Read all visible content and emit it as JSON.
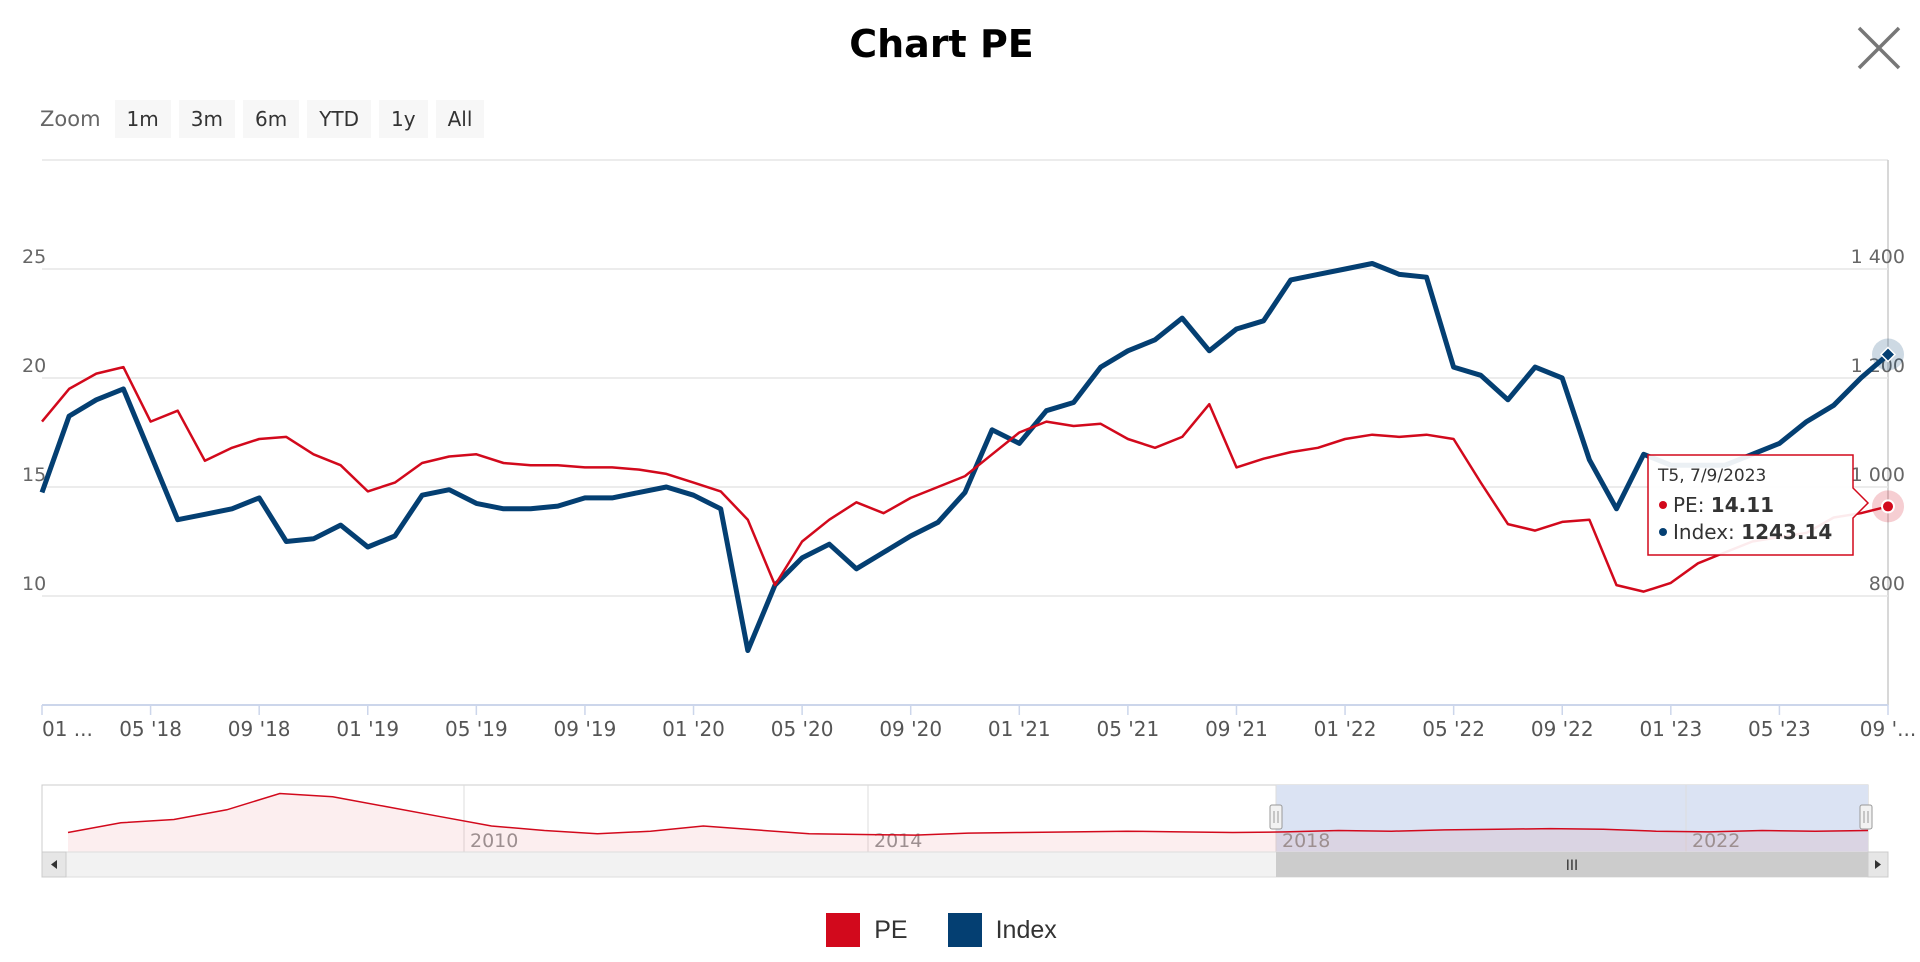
{
  "title": "Chart PE",
  "zoom": {
    "label": "Zoom",
    "buttons": [
      "1m",
      "3m",
      "6m",
      "YTD",
      "1y",
      "All"
    ]
  },
  "colors": {
    "pe": "#d2091c",
    "index": "#043f72",
    "navigator_fill": "#dbe3f3",
    "grid": "#e6e6e6"
  },
  "chart_data": {
    "type": "line",
    "title": "Chart PE",
    "x_range": [
      "2018-01",
      "2023-09"
    ],
    "x_tick_labels": [
      "01 ...",
      "05 '18",
      "09 '18",
      "01 '19",
      "05 '19",
      "09 '19",
      "01 '20",
      "05 '20",
      "09 '20",
      "01 '21",
      "05 '21",
      "09 '21",
      "01 '22",
      "05 '22",
      "09 '22",
      "01 '23",
      "05 '23",
      "09 '..."
    ],
    "y_left": {
      "label": "",
      "ticks": [
        "10",
        "15",
        "20",
        "25"
      ],
      "range": [
        5,
        30
      ]
    },
    "y_right": {
      "label": "",
      "ticks": [
        "800",
        "1 000",
        "1 200",
        "1 400"
      ],
      "range": [
        600,
        1600
      ]
    },
    "grid": true,
    "legend_position": "bottom-center",
    "series": [
      {
        "name": "PE",
        "axis": "left",
        "x": [
          "2018-01",
          "2018-02",
          "2018-03",
          "2018-04",
          "2018-05",
          "2018-06",
          "2018-07",
          "2018-08",
          "2018-09",
          "2018-10",
          "2018-11",
          "2018-12",
          "2019-01",
          "2019-02",
          "2019-03",
          "2019-04",
          "2019-05",
          "2019-06",
          "2019-07",
          "2019-08",
          "2019-09",
          "2019-10",
          "2019-11",
          "2019-12",
          "2020-01",
          "2020-02",
          "2020-03",
          "2020-04",
          "2020-05",
          "2020-06",
          "2020-07",
          "2020-08",
          "2020-09",
          "2020-10",
          "2020-11",
          "2020-12",
          "2021-01",
          "2021-02",
          "2021-03",
          "2021-04",
          "2021-05",
          "2021-06",
          "2021-07",
          "2021-08",
          "2021-09",
          "2021-10",
          "2021-11",
          "2021-12",
          "2022-01",
          "2022-02",
          "2022-03",
          "2022-04",
          "2022-05",
          "2022-06",
          "2022-07",
          "2022-08",
          "2022-09",
          "2022-10",
          "2022-11",
          "2022-12",
          "2023-01",
          "2023-02",
          "2023-03",
          "2023-04",
          "2023-05",
          "2023-06",
          "2023-07",
          "2023-08",
          "2023-09"
        ],
        "values": [
          18.0,
          19.5,
          20.2,
          20.5,
          18.0,
          18.5,
          16.2,
          16.8,
          17.2,
          17.3,
          16.5,
          16.0,
          14.8,
          15.2,
          16.1,
          16.4,
          16.5,
          16.1,
          16.0,
          16.0,
          15.9,
          15.9,
          15.8,
          15.6,
          15.2,
          14.8,
          13.5,
          10.5,
          12.5,
          13.5,
          14.3,
          13.8,
          14.5,
          15.0,
          15.5,
          16.5,
          17.5,
          18.0,
          17.8,
          17.9,
          17.2,
          16.8,
          17.3,
          18.8,
          15.9,
          16.3,
          16.6,
          16.8,
          17.2,
          17.4,
          17.3,
          17.4,
          17.2,
          15.2,
          13.3,
          13.0,
          13.4,
          13.5,
          10.5,
          10.2,
          10.6,
          11.5,
          12.0,
          12.5,
          12.7,
          12.9,
          13.6,
          13.8,
          14.11
        ]
      },
      {
        "name": "Index",
        "axis": "right",
        "x": [
          "2018-01",
          "2018-02",
          "2018-03",
          "2018-04",
          "2018-05",
          "2018-06",
          "2018-07",
          "2018-08",
          "2018-09",
          "2018-10",
          "2018-11",
          "2018-12",
          "2019-01",
          "2019-02",
          "2019-03",
          "2019-04",
          "2019-05",
          "2019-06",
          "2019-07",
          "2019-08",
          "2019-09",
          "2019-10",
          "2019-11",
          "2019-12",
          "2020-01",
          "2020-02",
          "2020-03",
          "2020-04",
          "2020-05",
          "2020-06",
          "2020-07",
          "2020-08",
          "2020-09",
          "2020-10",
          "2020-11",
          "2020-12",
          "2021-01",
          "2021-02",
          "2021-03",
          "2021-04",
          "2021-05",
          "2021-06",
          "2021-07",
          "2021-08",
          "2021-09",
          "2021-10",
          "2021-11",
          "2021-12",
          "2022-01",
          "2022-02",
          "2022-03",
          "2022-04",
          "2022-05",
          "2022-06",
          "2022-07",
          "2022-08",
          "2022-09",
          "2022-10",
          "2022-11",
          "2022-12",
          "2023-01",
          "2023-02",
          "2023-03",
          "2023-04",
          "2023-05",
          "2023-06",
          "2023-07",
          "2023-08",
          "2023-09"
        ],
        "values": [
          990,
          1130,
          1160,
          1180,
          1060,
          940,
          950,
          960,
          980,
          900,
          905,
          930,
          890,
          910,
          985,
          995,
          970,
          960,
          960,
          965,
          980,
          980,
          990,
          1000,
          985,
          960,
          700,
          820,
          870,
          895,
          850,
          880,
          910,
          935,
          990,
          1105,
          1080,
          1140,
          1155,
          1220,
          1250,
          1270,
          1310,
          1250,
          1290,
          1305,
          1380,
          1390,
          1400,
          1410,
          1390,
          1385,
          1220,
          1205,
          1160,
          1220,
          1200,
          1050,
          960,
          1060,
          1040,
          1040,
          1040,
          1060,
          1080,
          1120,
          1150,
          1200,
          1243.14
        ]
      }
    ],
    "tooltip": {
      "date": "T5, 7/9/2023",
      "pe_label": "PE: ",
      "pe_value": "14.11",
      "index_label": "Index: ",
      "index_value": "1243.14"
    },
    "navigator": {
      "labels": [
        "2010",
        "2014",
        "2018",
        "2022"
      ],
      "selected_range": [
        "2018-01",
        "2023-09"
      ],
      "scroll_grip": "III"
    }
  },
  "legend": {
    "items": [
      {
        "label": "PE",
        "color": "#d2091c"
      },
      {
        "label": "Index",
        "color": "#043f72"
      }
    ]
  }
}
